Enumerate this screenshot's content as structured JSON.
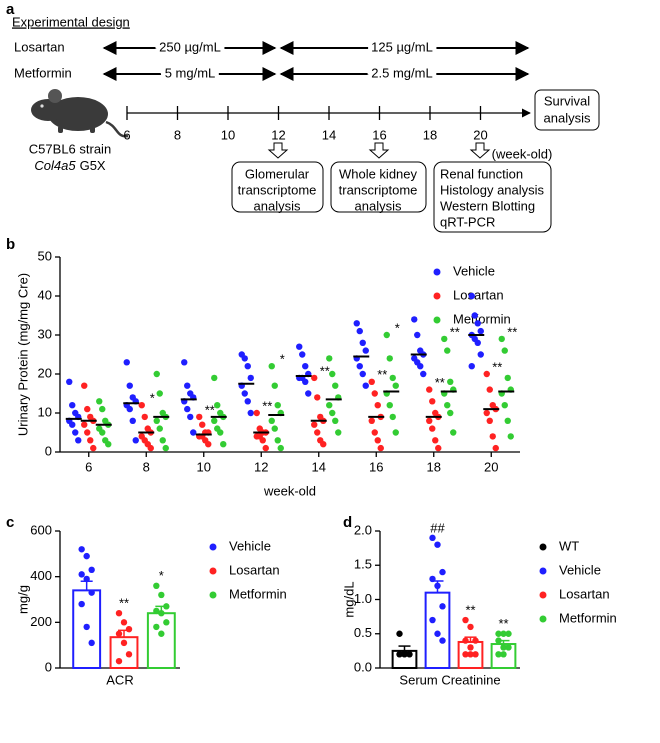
{
  "diagram": {
    "panel": "a",
    "title": "Experimental design",
    "rows": [
      {
        "label": "Losartan",
        "doses": [
          "250 µg/mL",
          "125 µg/mL"
        ]
      },
      {
        "label": "Metformin",
        "doses": [
          "5 mg/mL",
          "2.5 mg/mL"
        ]
      }
    ],
    "strain": "C57BL6 strain",
    "genotype_gene": "Col4a5",
    "genotype_mutation": "G5X",
    "timeline_labels": [
      "6",
      "8",
      "10",
      "12",
      "14",
      "16",
      "18",
      "20"
    ],
    "timeline_unit": "(week-old)",
    "end_box": [
      "Survival",
      "analysis"
    ],
    "boxes": [
      {
        "lines": [
          "Glomerular",
          "transcriptome",
          "analysis"
        ]
      },
      {
        "lines": [
          "Whole kidney",
          "transcriptome",
          "analysis"
        ]
      },
      {
        "lines": [
          "Renal function",
          "Histology analysis",
          "Western Blotting",
          "qRT-PCR"
        ]
      }
    ]
  },
  "chart_data": [
    {
      "panel": "b",
      "type": "dot",
      "y_label": "Urinary Protein (mg/mg Cre)",
      "x_label": "week-old",
      "categories": [
        "6",
        "8",
        "10",
        "12",
        "14",
        "16",
        "18",
        "20"
      ],
      "ylim": [
        0,
        50
      ],
      "yticks": [
        0,
        10,
        20,
        30,
        40,
        50
      ],
      "series": [
        {
          "name": "Vehicle",
          "color": "#1f1fff",
          "means": [
            8.5,
            12.5,
            13.5,
            17.5,
            19.5,
            24.5,
            25,
            30
          ],
          "points": [
            [
              18,
              12,
              10,
              9,
              8,
              7,
              5,
              3
            ],
            [
              23,
              17,
              14,
              13,
              12,
              11,
              8,
              3
            ],
            [
              23,
              17,
              15,
              14,
              13,
              11,
              9,
              5
            ],
            [
              25,
              24,
              22,
              19,
              17,
              15,
              13,
              10
            ],
            [
              27,
              25,
              22,
              20,
              19,
              19,
              18,
              15
            ],
            [
              33,
              31,
              28,
              26,
              24,
              22,
              20,
              17
            ],
            [
              34,
              30,
              26,
              25,
              24,
              23,
              22,
              20
            ],
            [
              40,
              35,
              33,
              31,
              30,
              29,
              28,
              25,
              22
            ]
          ],
          "sig_labels": [
            null,
            null,
            null,
            null,
            null,
            null,
            null,
            null
          ]
        },
        {
          "name": "Losartan",
          "color": "#ff2222",
          "means": [
            8,
            5,
            4.5,
            5,
            8,
            9,
            9,
            11
          ],
          "points": [
            [
              17,
              11,
              9,
              8,
              7,
              5,
              3,
              1
            ],
            [
              12,
              9,
              6,
              5,
              4,
              3,
              2,
              1
            ],
            [
              9,
              7,
              5,
              5,
              4,
              4,
              3,
              2
            ],
            [
              10,
              6,
              5,
              5,
              4,
              4,
              3,
              1
            ],
            [
              19,
              14,
              9,
              8,
              7,
              5,
              3,
              2
            ],
            [
              18,
              15,
              12,
              9,
              8,
              5,
              3,
              1
            ],
            [
              16,
              13,
              10,
              9,
              8,
              6,
              3,
              1
            ],
            [
              20,
              16,
              12,
              11,
              10,
              8,
              4,
              1
            ]
          ],
          "sig_labels": [
            null,
            "*",
            "**",
            "**",
            "**",
            "**",
            "**",
            "**"
          ]
        },
        {
          "name": "Metformin",
          "color": "#33cc33",
          "means": [
            7,
            9,
            9,
            9.5,
            13.5,
            15.5,
            15.5,
            15.5
          ],
          "points": [
            [
              13,
              11,
              8,
              7,
              6,
              5,
              3,
              2
            ],
            [
              20,
              15,
              10,
              9,
              8,
              6,
              3,
              1
            ],
            [
              19,
              12,
              10,
              9,
              8,
              6,
              5,
              2
            ],
            [
              22,
              17,
              12,
              10,
              8,
              6,
              3,
              1
            ],
            [
              24,
              20,
              17,
              14,
              12,
              10,
              8,
              5
            ],
            [
              30,
              24,
              19,
              17,
              15,
              12,
              9,
              5
            ],
            [
              29,
              26,
              18,
              16,
              15,
              12,
              10,
              5
            ],
            [
              29,
              26,
              19,
              16,
              15,
              12,
              8,
              4
            ]
          ],
          "sig_labels": [
            null,
            null,
            null,
            "*",
            null,
            "*",
            "**",
            "**"
          ]
        }
      ]
    },
    {
      "panel": "c",
      "type": "bar",
      "y_label": "mg/g",
      "categories": [
        "ACR"
      ],
      "ylim": [
        0,
        600
      ],
      "yticks": [
        0,
        200,
        400,
        600
      ],
      "series": [
        {
          "name": "Vehicle",
          "color": "#1f1fff",
          "values": [
            340
          ],
          "errors": [
            40
          ],
          "points": [
            [
              520,
              490,
              430,
              410,
              390,
              330,
              280,
              180,
              110
            ]
          ],
          "sig_labels": [
            null
          ]
        },
        {
          "name": "Losartan",
          "color": "#ff2222",
          "values": [
            135
          ],
          "errors": [
            30
          ],
          "points": [
            [
              240,
              200,
              170,
              150,
              110,
              60,
              30
            ]
          ],
          "sig_labels": [
            "**"
          ]
        },
        {
          "name": "Metformin",
          "color": "#33cc33",
          "values": [
            240
          ],
          "errors": [
            30
          ],
          "points": [
            [
              360,
              320,
              270,
              250,
              240,
              200,
              180,
              150
            ]
          ],
          "sig_labels": [
            "*"
          ]
        }
      ]
    },
    {
      "panel": "d",
      "type": "bar",
      "y_label": "mg/dL",
      "categories": [
        "Serum Creatinine"
      ],
      "ylim": [
        0,
        2
      ],
      "yticks": [
        {
          "value": 0,
          "label": "0.0"
        },
        0.5,
        {
          "value": 1,
          "label": "1.0"
        },
        1.5,
        {
          "value": 2,
          "label": "2.0"
        }
      ],
      "series": [
        {
          "name": "WT",
          "color": "#000000",
          "values": [
            0.25
          ],
          "errors": [
            0.07
          ],
          "points": [
            [
              0.5,
              0.22,
              0.2,
              0.2,
              0.2
            ]
          ],
          "sig_labels": [
            null
          ]
        },
        {
          "name": "Vehicle",
          "color": "#1f1fff",
          "values": [
            1.1
          ],
          "errors": [
            0.17
          ],
          "points": [
            [
              1.9,
              1.8,
              1.4,
              1.3,
              1.2,
              0.9,
              0.7,
              0.5,
              0.4
            ]
          ],
          "sig_labels": [
            "##"
          ]
        },
        {
          "name": "Losartan",
          "color": "#ff2222",
          "values": [
            0.38
          ],
          "errors": [
            0.07
          ],
          "points": [
            [
              0.7,
              0.6,
              0.4,
              0.4,
              0.3,
              0.2,
              0.2,
              0.2
            ]
          ],
          "sig_labels": [
            "**"
          ]
        },
        {
          "name": "Metformin",
          "color": "#33cc33",
          "values": [
            0.35
          ],
          "errors": [
            0.05
          ],
          "points": [
            [
              0.5,
              0.5,
              0.5,
              0.4,
              0.3,
              0.3,
              0.2,
              0.2
            ]
          ],
          "sig_labels": [
            "**"
          ]
        }
      ]
    }
  ]
}
